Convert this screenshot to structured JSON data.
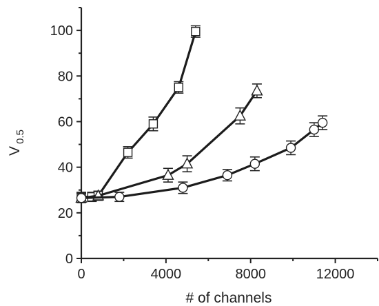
{
  "chart_data": {
    "type": "scatter",
    "xlabel": "# of channels",
    "ylabel": "V",
    "ylabel_subscript": "0.5",
    "xlim": [
      0,
      14000
    ],
    "ylim": [
      0,
      110
    ],
    "xticks": [
      0,
      4000,
      8000,
      12000
    ],
    "yticks": [
      0,
      20,
      40,
      60,
      80,
      100
    ],
    "grid": false,
    "series": [
      {
        "marker": "square",
        "x": [
          0,
          500,
          800,
          2200,
          3400,
          4600,
          5400
        ],
        "y": [
          27,
          27,
          27.5,
          46.5,
          59,
          75,
          99.5
        ],
        "err": [
          2,
          2,
          2,
          2.5,
          3,
          2.5,
          2.5
        ]
      },
      {
        "marker": "triangle",
        "x": [
          0,
          800,
          4100,
          5000,
          7500,
          8300
        ],
        "y": [
          26.5,
          27.5,
          36.5,
          41.5,
          62.5,
          73.5
        ],
        "err": [
          2,
          2,
          3,
          3.5,
          3.5,
          3
        ]
      },
      {
        "marker": "circle",
        "x": [
          0,
          1800,
          4800,
          6900,
          8200,
          9900,
          11000,
          11400
        ],
        "y": [
          26.5,
          27,
          31,
          36.5,
          41.5,
          48.5,
          56.5,
          59.5
        ],
        "err": [
          2,
          2,
          2.5,
          2.5,
          3,
          3,
          3,
          3
        ]
      }
    ]
  }
}
